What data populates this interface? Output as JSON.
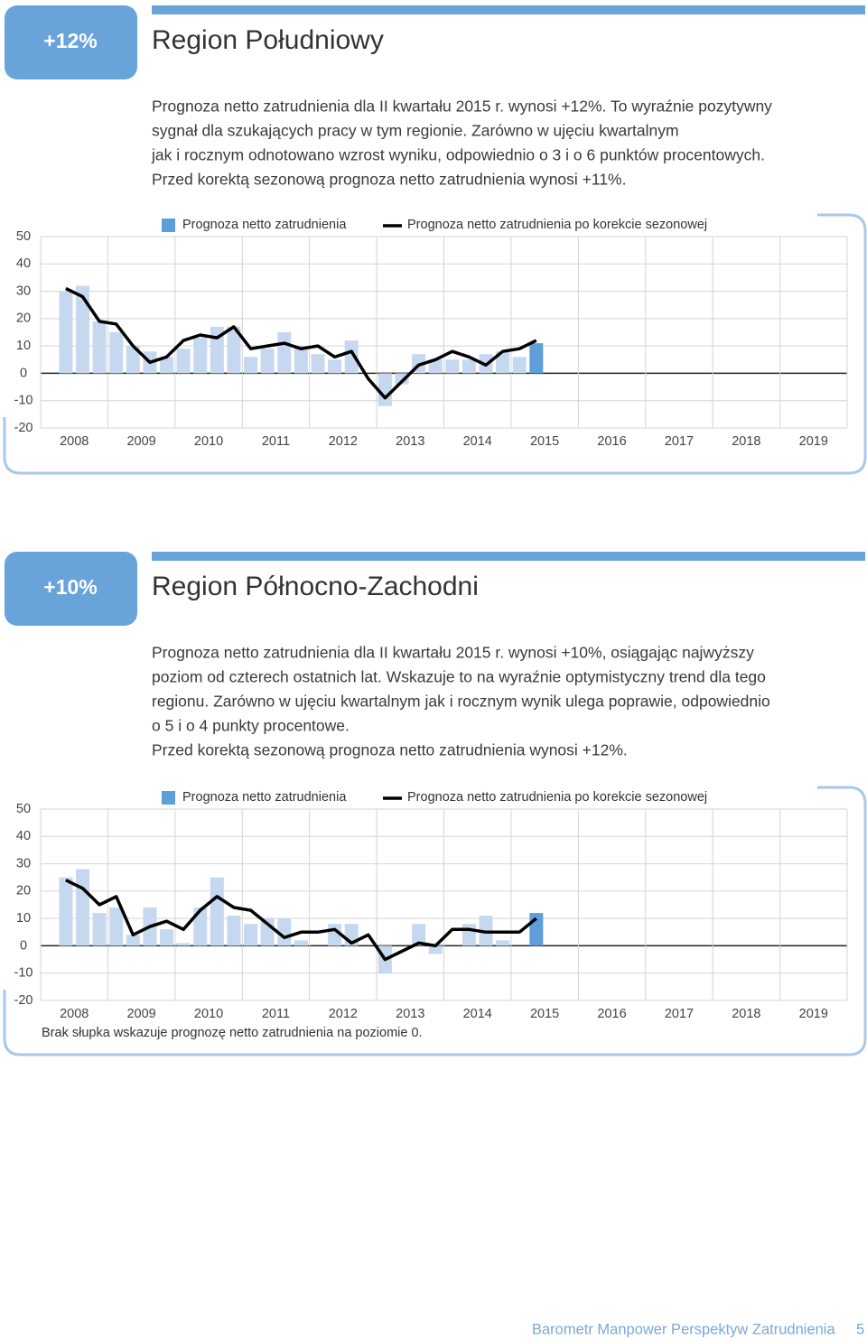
{
  "sections": [
    {
      "badge": "+12%",
      "title": "Region Południowy",
      "paragraph": [
        "Prognoza netto zatrudnienia dla II kwartału 2015 r. wynosi +12%. To wyraźnie pozytywny",
        "sygnał dla szukających pracy w tym regionie. Zarówno w ujęciu kwartalnym",
        "jak i rocznym odnotowano wzrost wyniku, odpowiednio o 3 i o 6 punktów procentowych.",
        "Przed korektą sezonową prognoza netto zatrudnienia wynosi +11%."
      ]
    },
    {
      "badge": "+10%",
      "title": "Region Północno-Zachodni",
      "paragraph": [
        "Prognoza netto zatrudnienia dla II kwartału 2015 r. wynosi +10%, osiągając najwyższy",
        "poziom od czterech ostatnich lat. Wskazuje to na wyraźnie optymistyczny trend dla tego",
        "regionu. Zarówno w ujęciu kwartalnym jak i rocznym wynik ulega poprawie, odpowiednio",
        "o 5 i o 4 punkty procentowe.",
        "Przed korektą sezonową prognoza netto zatrudnienia wynosi +12%."
      ]
    }
  ],
  "chart_data": [
    {
      "type": "bar",
      "categories": [
        "2008",
        "2009",
        "2010",
        "2011",
        "2012",
        "2013",
        "2014",
        "2015",
        "2016",
        "2017",
        "2018",
        "2019"
      ],
      "ylim": [
        -20,
        50
      ],
      "yticks": [
        -20,
        -10,
        0,
        10,
        20,
        30,
        40,
        50
      ],
      "grid": true,
      "series": [
        {
          "name": "Prognoza netto zatrudnienia",
          "type": "bar",
          "color": "#c6d8f0",
          "latest_color": "#5f9fd9",
          "values": [
            [
              null,
              30,
              32,
              19
            ],
            [
              15,
              10,
              8,
              6
            ],
            [
              9,
              13,
              17,
              17
            ],
            [
              6,
              9,
              15,
              10
            ],
            [
              7,
              5,
              12,
              0
            ],
            [
              -12,
              -4,
              7,
              5
            ],
            [
              5,
              5,
              7,
              8
            ],
            [
              6,
              11,
              null,
              null
            ],
            [
              null,
              null,
              null,
              null
            ],
            [
              null,
              null,
              null,
              null
            ],
            [
              null,
              null,
              null,
              null
            ],
            [
              null,
              null,
              null,
              null
            ]
          ]
        },
        {
          "name": "Prognoza netto zatrudnienia po korekcie sezonowej",
          "type": "line",
          "color": "#000000",
          "values": [
            [
              null,
              31,
              28,
              19
            ],
            [
              18,
              10,
              4,
              6
            ],
            [
              12,
              14,
              13,
              17
            ],
            [
              9,
              10,
              11,
              9
            ],
            [
              10,
              6,
              8,
              -2
            ],
            [
              -9,
              -3,
              3,
              5
            ],
            [
              8,
              6,
              3,
              8
            ],
            [
              9,
              12,
              null,
              null
            ],
            [
              null,
              null,
              null,
              null
            ],
            [
              null,
              null,
              null,
              null
            ],
            [
              null,
              null,
              null,
              null
            ],
            [
              null,
              null,
              null,
              null
            ]
          ]
        }
      ]
    },
    {
      "type": "bar",
      "categories": [
        "2008",
        "2009",
        "2010",
        "2011",
        "2012",
        "2013",
        "2014",
        "2015",
        "2016",
        "2017",
        "2018",
        "2019"
      ],
      "ylim": [
        -20,
        50
      ],
      "yticks": [
        -20,
        -10,
        0,
        10,
        20,
        30,
        40,
        50
      ],
      "grid": true,
      "note": "Brak słupka wskazuje prognozę netto zatrudnienia na poziomie 0.",
      "series": [
        {
          "name": "Prognoza netto zatrudnienia",
          "type": "bar",
          "color": "#c6d8f0",
          "latest_color": "#5f9fd9",
          "values": [
            [
              null,
              25,
              28,
              12
            ],
            [
              14,
              4,
              14,
              6
            ],
            [
              1,
              14,
              25,
              11
            ],
            [
              8,
              10,
              10,
              2
            ],
            [
              0,
              8,
              8,
              0
            ],
            [
              -10,
              0,
              8,
              -3
            ],
            [
              0,
              8,
              11,
              2
            ],
            [
              0,
              12,
              null,
              null
            ],
            [
              null,
              null,
              null,
              null
            ],
            [
              null,
              null,
              null,
              null
            ],
            [
              null,
              null,
              null,
              null
            ],
            [
              null,
              null,
              null,
              null
            ]
          ]
        },
        {
          "name": "Prognoza netto zatrudnienia po korekcie sezonowej",
          "type": "line",
          "color": "#000000",
          "values": [
            [
              null,
              24,
              21,
              15
            ],
            [
              18,
              4,
              7,
              9
            ],
            [
              6,
              13,
              18,
              14
            ],
            [
              13,
              8,
              3,
              5
            ],
            [
              5,
              6,
              1,
              4
            ],
            [
              -5,
              -2,
              1,
              0
            ],
            [
              6,
              6,
              5,
              5
            ],
            [
              5,
              10,
              null,
              null
            ],
            [
              null,
              null,
              null,
              null
            ],
            [
              null,
              null,
              null,
              null
            ],
            [
              null,
              null,
              null,
              null
            ],
            [
              null,
              null,
              null,
              null
            ]
          ]
        }
      ]
    }
  ],
  "footer": {
    "title": "Barometr Manpower Perspektyw Zatrudnienia",
    "page": "5"
  }
}
